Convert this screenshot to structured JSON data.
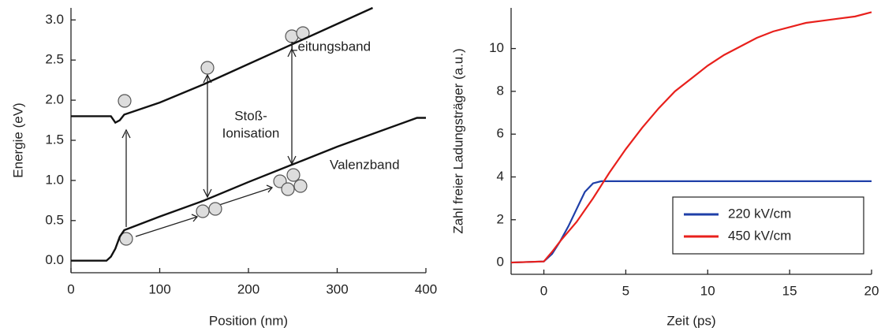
{
  "chart_data": [
    {
      "type": "line",
      "xlabel": "Position (nm)",
      "ylabel": "Energie (eV)",
      "xlim": [
        0,
        400
      ],
      "xticks": [
        0,
        100,
        200,
        300,
        400
      ],
      "ylim": [
        -0.15,
        3.15
      ],
      "yticks": [
        {
          "value": 0,
          "label": "0.0"
        },
        0.5,
        {
          "value": 1,
          "label": "1.0"
        },
        1.5,
        {
          "value": 2,
          "label": "2.0"
        },
        2.5,
        {
          "value": 3,
          "label": "3.0"
        }
      ],
      "annotations": [
        "Stoß-",
        "Ionisation"
      ],
      "series": [
        {
          "name": "Leitungsband",
          "color": "#111111",
          "x": [
            0,
            45,
            50,
            55,
            60,
            100,
            150,
            200,
            250,
            300,
            340
          ],
          "values": [
            1.8,
            1.8,
            1.72,
            1.75,
            1.82,
            1.97,
            2.2,
            2.45,
            2.7,
            2.95,
            3.15
          ]
        },
        {
          "name": "Valenzband",
          "color": "#111111",
          "x": [
            0,
            40,
            45,
            50,
            55,
            60,
            100,
            150,
            200,
            250,
            300,
            350,
            390,
            400
          ],
          "values": [
            0,
            0,
            0.05,
            0.15,
            0.3,
            0.38,
            0.55,
            0.75,
            0.98,
            1.2,
            1.42,
            1.62,
            1.78,
            1.78
          ]
        }
      ]
    },
    {
      "type": "line",
      "xlabel": "Zeit (ps)",
      "ylabel": "Zahl freier Ladungsträger (a.u.)",
      "xlim": [
        -2,
        20
      ],
      "xticks": [
        0,
        5,
        10,
        15,
        20
      ],
      "ylim": [
        -0.55,
        11.9
      ],
      "yticks": [
        0,
        2,
        4,
        6,
        8,
        10
      ],
      "legend": "lower right",
      "x": [
        -2,
        0,
        0.5,
        1,
        1.5,
        2,
        2.5,
        3,
        3.5,
        4,
        5,
        6,
        7,
        8,
        9,
        10,
        11,
        12,
        13,
        14,
        15,
        16,
        17,
        18,
        19,
        20
      ],
      "series": [
        {
          "name": "220 kV/cm",
          "color": "#1f3fa8",
          "values": [
            0,
            0.05,
            0.4,
            1,
            1.7,
            2.5,
            3.3,
            3.7,
            3.8,
            3.8,
            3.8,
            3.8,
            3.8,
            3.8,
            3.8,
            3.8,
            3.8,
            3.8,
            3.8,
            3.8,
            3.8,
            3.8,
            3.8,
            3.8,
            3.8,
            3.8
          ]
        },
        {
          "name": "450 kV/cm",
          "color": "#e8201c",
          "values": [
            0,
            0.05,
            0.5,
            1.0,
            1.45,
            1.9,
            2.45,
            3.0,
            3.6,
            4.2,
            5.3,
            6.3,
            7.2,
            8.0,
            8.6,
            9.2,
            9.7,
            10.1,
            10.5,
            10.8,
            11.0,
            11.2,
            11.3,
            11.4,
            11.5,
            11.7
          ]
        }
      ]
    }
  ]
}
